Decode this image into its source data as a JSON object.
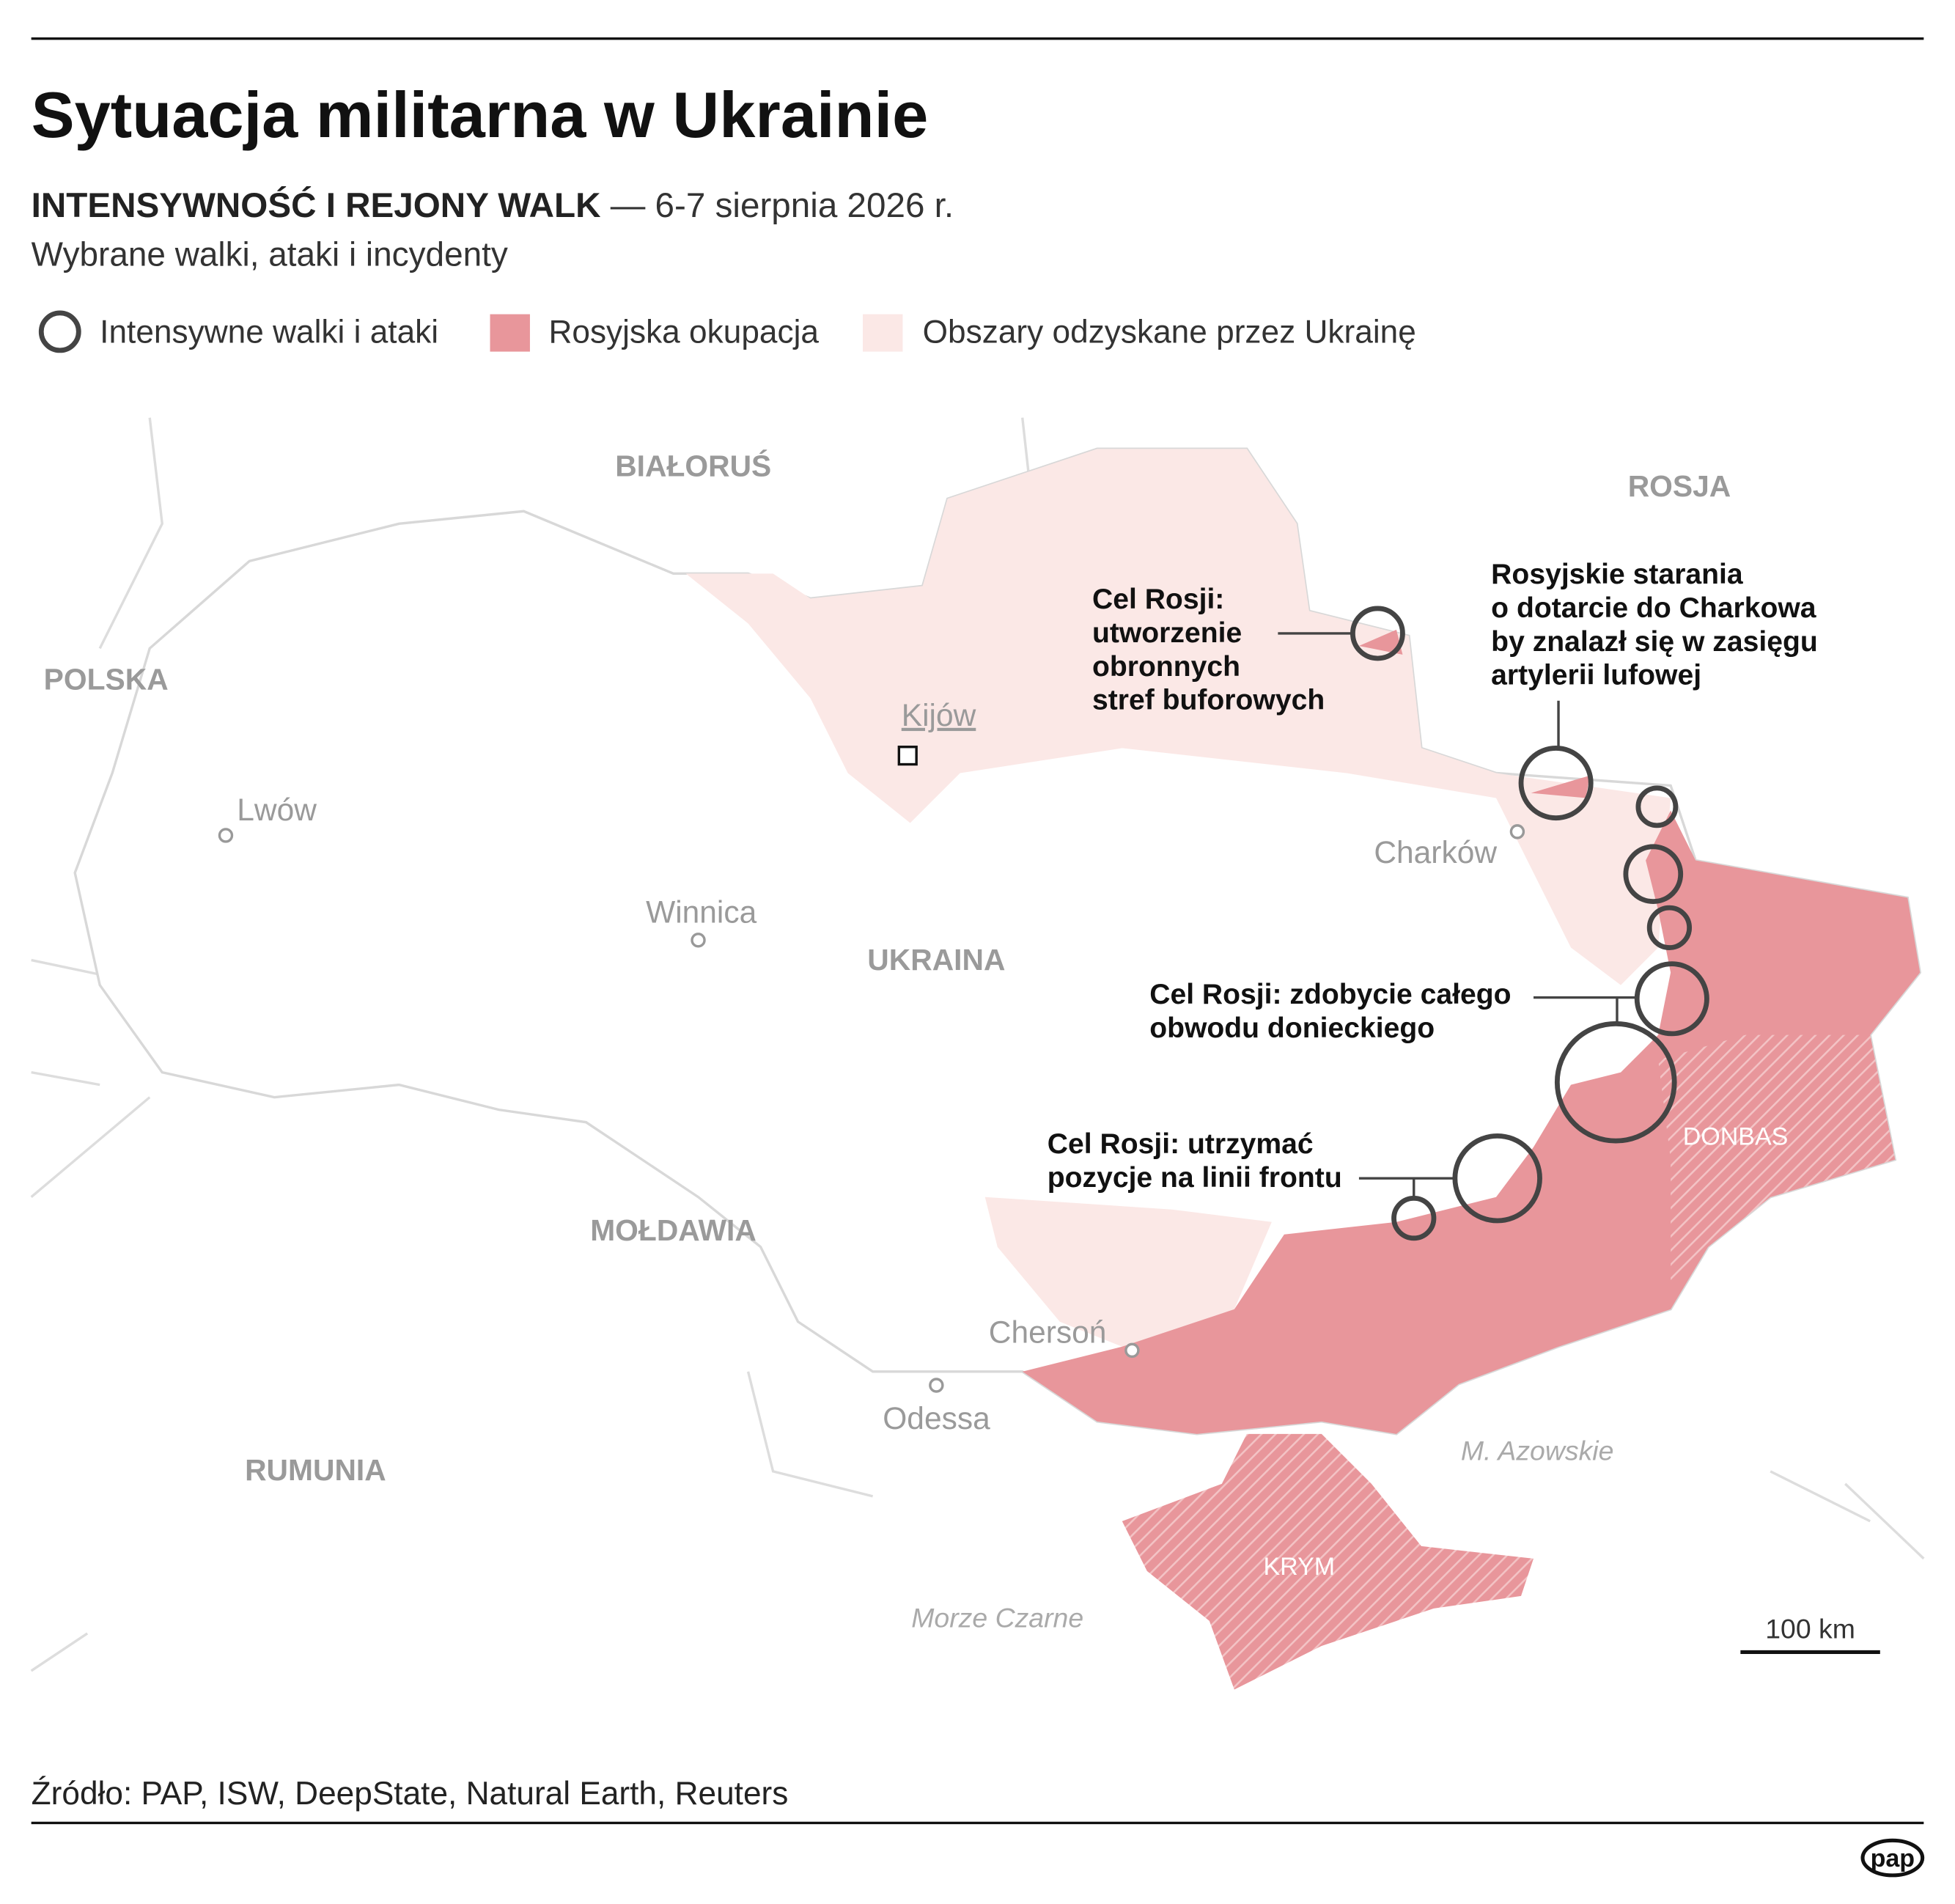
{
  "header": {
    "title": "Sytuacja militarna w Ukrainie",
    "subtitle": "INTENSYWNOŚĆ I REJONY WALK",
    "date": "— 6-7 sierpnia 2026 r.",
    "description": "Wybrane walki, ataki i incydenty"
  },
  "legend": [
    "Intensywne walki i ataki",
    "Rosyjska okupacja",
    "Obszary odzyskane przez Ukrainę"
  ],
  "map": {
    "countries": [
      "BIAŁORUŚ",
      "ROSJA",
      "POLSKA",
      "UKRAINA",
      "MOŁDAWIA",
      "RUMUNIA"
    ],
    "capital": "Kijów",
    "cities": [
      "Lwów",
      "Winnica",
      "Charków",
      "Chersoń",
      "Odessa"
    ],
    "seas": [
      "M. Azowskie",
      "Morze Czarne"
    ],
    "regions": [
      "DONBAS",
      "KRYM"
    ],
    "scale": "100 km"
  },
  "annotations": [
    [
      "Cel Rosji:",
      "utworzenie",
      "obronnych",
      "stref buforowych"
    ],
    [
      "Rosyjskie starania",
      "o dotarcie do Charkowa",
      "by znalazł się w zasięgu",
      "artylerii lufowej"
    ],
    [
      "Cel Rosji: zdobycie całego",
      "obwodu donieckiego"
    ],
    [
      "Cel Rosji: utrzymać",
      "pozycje na linii frontu"
    ]
  ],
  "source": "Źródło: PAP, ISW, DeepState, Natural Earth, Reuters",
  "logo": "pap"
}
